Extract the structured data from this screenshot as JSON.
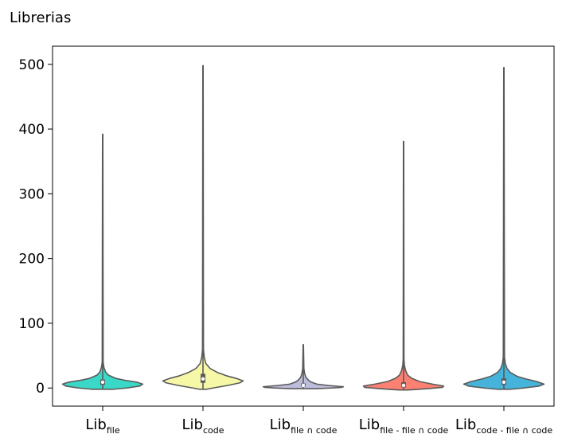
{
  "chart_data": {
    "type": "violin",
    "ylabel": "Librerias",
    "ylim": [
      -28,
      528
    ],
    "yticks": [
      0,
      100,
      200,
      300,
      400,
      500
    ],
    "ytick_labels": [
      "0",
      "100",
      "200",
      "300",
      "400",
      "500"
    ],
    "grid": false,
    "categories": [
      {
        "main": "Lib",
        "sub": "file"
      },
      {
        "main": "Lib",
        "sub": "code"
      },
      {
        "main": "Lib",
        "sub": "file ∩ code"
      },
      {
        "main": "Lib",
        "sub": "file - file ∩ code"
      },
      {
        "main": "Lib",
        "sub": "code - file ∩ code"
      }
    ],
    "series": [
      {
        "color": "#3ad8c6",
        "min": -2,
        "max": 392,
        "q1": 5,
        "median": 9,
        "q3": 13,
        "profile": [
          [
            -2,
            0.25
          ],
          [
            0,
            0.6
          ],
          [
            3,
            0.92
          ],
          [
            6,
            1.0
          ],
          [
            9,
            0.85
          ],
          [
            12,
            0.55
          ],
          [
            15,
            0.32
          ],
          [
            20,
            0.14
          ],
          [
            25,
            0.07
          ],
          [
            32,
            0.03
          ],
          [
            40,
            0.012
          ],
          [
            392,
            0.004
          ]
        ]
      },
      {
        "color": "#f7f7a8",
        "min": -2,
        "max": 498,
        "q1": 8,
        "median": 14,
        "q3": 22,
        "profile": [
          [
            -2,
            0.08
          ],
          [
            0,
            0.25
          ],
          [
            4,
            0.62
          ],
          [
            8,
            0.92
          ],
          [
            11,
            1.0
          ],
          [
            15,
            0.82
          ],
          [
            19,
            0.58
          ],
          [
            24,
            0.36
          ],
          [
            30,
            0.18
          ],
          [
            38,
            0.07
          ],
          [
            48,
            0.03
          ],
          [
            60,
            0.012
          ],
          [
            498,
            0.004
          ]
        ]
      },
      {
        "color": "#bdbcdc",
        "min": -1,
        "max": 67,
        "q1": 2,
        "median": 4,
        "q3": 7,
        "profile": [
          [
            -1,
            0.35
          ],
          [
            0,
            0.7
          ],
          [
            1,
            0.96
          ],
          [
            2,
            1.0
          ],
          [
            4,
            0.62
          ],
          [
            6,
            0.34
          ],
          [
            9,
            0.2
          ],
          [
            12,
            0.13
          ],
          [
            16,
            0.07
          ],
          [
            22,
            0.035
          ],
          [
            30,
            0.015
          ],
          [
            67,
            0.004
          ]
        ]
      },
      {
        "color": "#fd8173",
        "min": -3,
        "max": 381,
        "q1": 1,
        "median": 4,
        "q3": 9,
        "profile": [
          [
            -3,
            0.12
          ],
          [
            -1,
            0.6
          ],
          [
            1,
            0.97
          ],
          [
            3,
            1.0
          ],
          [
            6,
            0.72
          ],
          [
            10,
            0.4
          ],
          [
            15,
            0.2
          ],
          [
            20,
            0.1
          ],
          [
            27,
            0.05
          ],
          [
            35,
            0.02
          ],
          [
            45,
            0.01
          ],
          [
            381,
            0.004
          ]
        ]
      },
      {
        "color": "#46b3da",
        "min": -2,
        "max": 495,
        "q1": 5,
        "median": 9,
        "q3": 15,
        "profile": [
          [
            -2,
            0.15
          ],
          [
            0,
            0.5
          ],
          [
            3,
            0.88
          ],
          [
            6,
            1.0
          ],
          [
            10,
            0.82
          ],
          [
            14,
            0.55
          ],
          [
            18,
            0.33
          ],
          [
            24,
            0.16
          ],
          [
            30,
            0.08
          ],
          [
            38,
            0.035
          ],
          [
            48,
            0.015
          ],
          [
            495,
            0.004
          ]
        ]
      }
    ]
  }
}
